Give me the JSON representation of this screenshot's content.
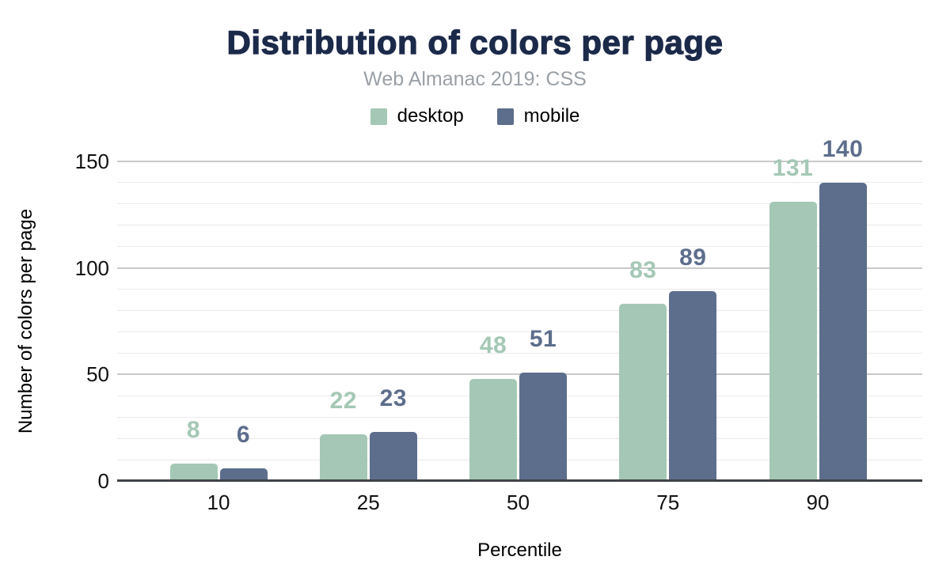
{
  "title": "Distribution of colors per page",
  "subtitle": "Web Almanac 2019: CSS",
  "legend": {
    "items": [
      {
        "label": "desktop",
        "color": "#a4c8b5"
      },
      {
        "label": "mobile",
        "color": "#5d6e8c"
      }
    ]
  },
  "chart_data": {
    "type": "bar",
    "title": "Distribution of colors per page",
    "subtitle": "Web Almanac 2019: CSS",
    "categories": [
      "10",
      "25",
      "50",
      "75",
      "90"
    ],
    "series": [
      {
        "name": "desktop",
        "color": "#a4c8b5",
        "values": [
          8,
          22,
          48,
          83,
          131
        ]
      },
      {
        "name": "mobile",
        "color": "#5d6e8c",
        "values": [
          6,
          23,
          51,
          89,
          140
        ]
      }
    ],
    "xlabel": "Percentile",
    "ylabel": "Number of colors per page",
    "ylim": [
      0,
      150
    ],
    "yticks": [
      0,
      50,
      100,
      150
    ],
    "grid": true,
    "grid_minor_step": 10,
    "grid_major_step": 50,
    "legend_position": "top",
    "data_labels": true
  },
  "colors": {
    "title": "#1c2a4a",
    "subtitle": "#9aa0a6",
    "axis_line": "#404347",
    "grid_major": "#c9c9c9",
    "grid_minor": "#eaeaea",
    "tick_text": "#111111",
    "background": "#ffffff"
  }
}
